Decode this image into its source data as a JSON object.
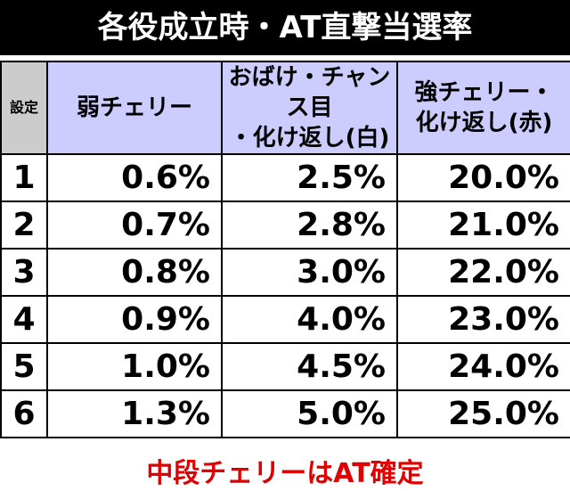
{
  "title": "各役成立時・AT直撃当選率",
  "table": {
    "header": [
      [
        "設定"
      ],
      [
        "弱チェリー"
      ],
      [
        "おばけ・チャンス目",
        "・化け返し(白)"
      ],
      [
        "強チェリー・",
        "化け返し(赤)"
      ]
    ],
    "rows": [
      [
        "1",
        "0.6%",
        "2.5%",
        "20.0%"
      ],
      [
        "2",
        "0.7%",
        "2.8%",
        "21.0%"
      ],
      [
        "3",
        "0.8%",
        "3.0%",
        "22.0%"
      ],
      [
        "4",
        "0.9%",
        "4.0%",
        "23.0%"
      ],
      [
        "5",
        "1.0%",
        "4.5%",
        "24.0%"
      ],
      [
        "6",
        "1.3%",
        "5.0%",
        "25.0%"
      ]
    ]
  },
  "note": "中段チェリーはAT確定"
}
